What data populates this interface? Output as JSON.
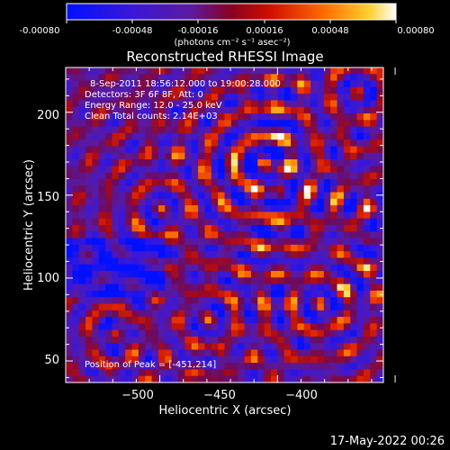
{
  "colorbar": {
    "tick_labels": [
      "-0.00080",
      "-0.00048",
      "-0.00016",
      "0.00016",
      "0.00048",
      "0.00080"
    ],
    "range": [
      -0.0008,
      0.0008
    ],
    "unit_label": "(photons cm⁻² s⁻¹ asec⁻²)"
  },
  "chart_data": {
    "type": "heatmap",
    "title": "Reconstructed RHESSI Image",
    "xlabel": "Heliocentric X (arcsec)",
    "ylabel": "Heliocentric Y (arcsec)",
    "xlim": [
      -540,
      -405
    ],
    "ylim": [
      37,
      227
    ],
    "xticks": [
      -500,
      -450,
      -400
    ],
    "yticks": [
      50,
      100,
      150,
      200
    ],
    "xtick_labels": [
      "−500",
      "−450",
      "−400"
    ],
    "ytick_labels": [
      "50",
      "100",
      "150",
      "200"
    ],
    "annotations": {
      "line1": "8-Sep-2011 18:56:12.000 to 19:00:28.000",
      "line2": "Detectors: 3F 6F 8F, Att: 0",
      "line3": "Energy Range: 12.0 - 25.0 keV",
      "line4": "Clean     Total counts: 2.14E+03",
      "peak": "Position of Peak = [-451,214]"
    },
    "peak_position": [
      -451,
      214
    ],
    "colormap": [
      "#0000ff",
      "#5a1aa0",
      "#a00000",
      "#ff4400",
      "#ffb000",
      "#ffffff"
    ]
  },
  "footer": {
    "date": "17-May-2022 00:26"
  }
}
